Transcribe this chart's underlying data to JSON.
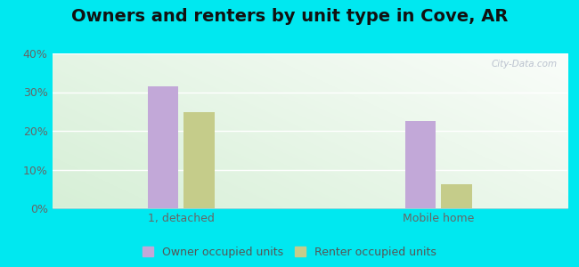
{
  "title": "Owners and renters by unit type in Cove, AR",
  "categories": [
    "1, detached",
    "Mobile home"
  ],
  "owner_values": [
    31.4,
    22.5
  ],
  "renter_values": [
    24.8,
    6.1
  ],
  "owner_color": "#c2a8d8",
  "renter_color": "#c5cc8a",
  "ylim": [
    0,
    40
  ],
  "yticks": [
    0,
    10,
    20,
    30,
    40
  ],
  "ytick_labels": [
    "0%",
    "10%",
    "20%",
    "30%",
    "40%"
  ],
  "bar_width": 0.12,
  "legend_owner": "Owner occupied units",
  "legend_renter": "Renter occupied units",
  "outer_bg": "#00e8f0",
  "watermark": "City-Data.com",
  "title_fontsize": 14,
  "axis_fontsize": 9,
  "legend_fontsize": 9
}
